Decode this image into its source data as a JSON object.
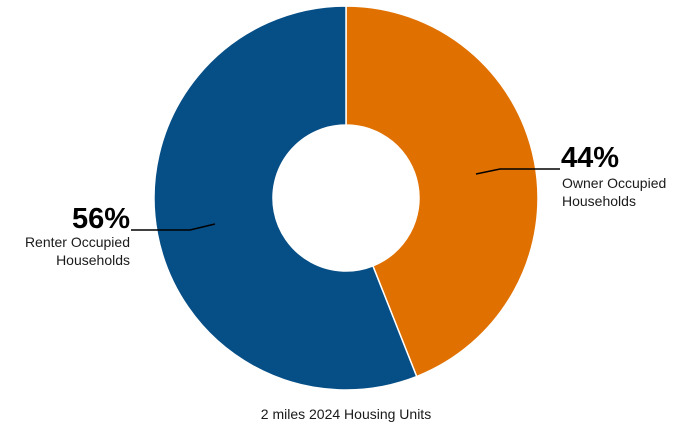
{
  "chart_data": {
    "type": "pie",
    "donut": true,
    "slices": [
      {
        "label_line1": "Owner Occupied",
        "label_line2": "Households",
        "value": 44,
        "percent_text": "44%",
        "color": "#E07000"
      },
      {
        "label_line1": "Renter Occupied",
        "label_line2": "Households",
        "value": 56,
        "percent_text": "56%",
        "color": "#064E86"
      }
    ],
    "caption": "2 miles 2024 Housing Units"
  }
}
